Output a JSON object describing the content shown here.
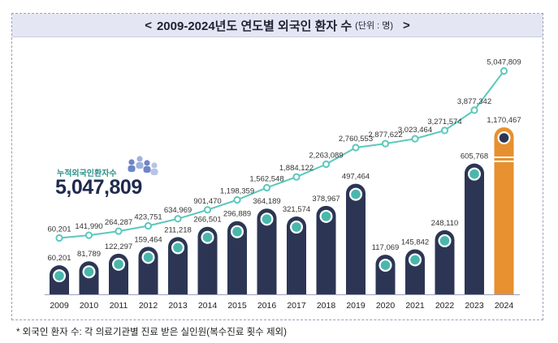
{
  "title": {
    "left_arrow": "<",
    "main": "2009-2024년도 연도별 외국인 환자 수",
    "unit": "(단위 : 명)",
    "right_arrow": ">"
  },
  "cumulative": {
    "label": "누적외국인환자수",
    "value": "5,047,809"
  },
  "footnote": "* 외국인 환자 수: 각 의료기관별 진료 받은 실인원(복수진료 횟수 제외)",
  "colors": {
    "bar": "#2c3654",
    "bar_highlight": "#e7902f",
    "line": "#5cc8bd",
    "marker_ring": "#ffffff",
    "marker_fill": "#49b7ac"
  },
  "chart_data": {
    "type": "bar",
    "title": "2009-2024년도 연도별 외국인 환자 수",
    "unit": "명",
    "categories": [
      "2009",
      "2010",
      "2011",
      "2012",
      "2013",
      "2014",
      "2015",
      "2016",
      "2017",
      "2018",
      "2019",
      "2020",
      "2021",
      "2022",
      "2023",
      "2024"
    ],
    "series": [
      {
        "name": "연도별 외국인 환자 수",
        "type": "bar",
        "values": [
          60201,
          81789,
          122297,
          159464,
          211218,
          266501,
          296889,
          364189,
          321574,
          378967,
          497464,
          117069,
          145842,
          248110,
          605768,
          1170467
        ],
        "labels": [
          "60,201",
          "81,789",
          "122,297",
          "159,464",
          "211,218",
          "266,501",
          "296,889",
          "364,189",
          "321,574",
          "378,967",
          "497,464",
          "117,069",
          "145,842",
          "248,110",
          "605,768",
          "1,170,467"
        ]
      },
      {
        "name": "누적외국인환자수",
        "type": "line",
        "values": [
          60201,
          141990,
          264287,
          423751,
          634969,
          901470,
          1198359,
          1562548,
          1884122,
          2263089,
          2760553,
          2877622,
          3023464,
          3271574,
          3877342,
          5047809
        ],
        "labels": [
          "60,201",
          "141,990",
          "264,287",
          "423,751",
          "634,969",
          "901,470",
          "1,198,359",
          "1,562,548",
          "1,884,122",
          "2,263,089",
          "2,760,553",
          "2,877,622",
          "3,023,464",
          "3,271,574",
          "3,877,342",
          "5,047,809"
        ]
      }
    ],
    "highlight_category": "2024",
    "axis_break_on": "2024"
  }
}
